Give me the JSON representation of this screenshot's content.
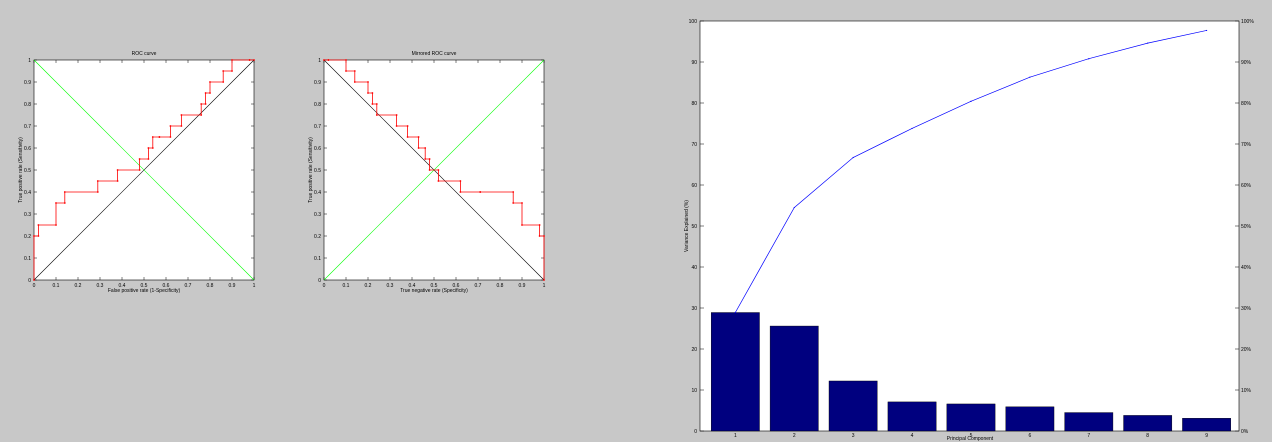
{
  "chart_data": [
    {
      "type": "line",
      "title": "ROC curve",
      "xlabel": "False positive rate (1-Specificity)",
      "ylabel": "True positive rate (Sensitivity)",
      "xlim": [
        0,
        1
      ],
      "ylim": [
        0,
        1
      ],
      "x_ticks": [
        "0",
        "0.1",
        "0.2",
        "0.3",
        "0.4",
        "0.5",
        "0.6",
        "0.7",
        "0.8",
        "0.9",
        "1"
      ],
      "y_ticks": [
        "0",
        "0.1",
        "0.2",
        "0.3",
        "0.4",
        "0.5",
        "0.6",
        "0.7",
        "0.8",
        "0.9",
        "1"
      ],
      "colors": {
        "roc": "#ff0000",
        "random": "#000000",
        "anti": "#00ff00"
      },
      "series": [
        {
          "x": [
            0,
            0,
            0.02,
            0.02,
            0.1,
            0.1,
            0.14,
            0.14,
            0.29,
            0.29,
            0.38,
            0.38,
            0.48,
            0.48,
            0.52,
            0.52,
            0.54,
            0.54,
            0.57,
            0.57,
            0.62,
            0.62,
            0.67,
            0.67,
            0.76,
            0.76,
            0.78,
            0.78,
            0.8,
            0.8,
            0.86,
            0.86,
            0.9,
            0.9,
            0.98,
            0.98,
            1
          ],
          "y": [
            0,
            0.2,
            0.2,
            0.25,
            0.25,
            0.35,
            0.35,
            0.4,
            0.4,
            0.45,
            0.45,
            0.5,
            0.5,
            0.55,
            0.55,
            0.6,
            0.6,
            0.65,
            0.65,
            0.65,
            0.65,
            0.7,
            0.7,
            0.75,
            0.75,
            0.8,
            0.8,
            0.85,
            0.85,
            0.9,
            0.9,
            0.95,
            0.95,
            1,
            1,
            1,
            1
          ]
        }
      ]
    },
    {
      "type": "line",
      "title": "Mirrored ROC curve",
      "xlabel": "True negative rate (Specificity)",
      "ylabel": "True positive rate (Sensitivity)",
      "xlim": [
        0,
        1
      ],
      "ylim": [
        0,
        1
      ],
      "x_ticks": [
        "0",
        "0.1",
        "0.2",
        "0.3",
        "0.4",
        "0.5",
        "0.6",
        "0.7",
        "0.8",
        "0.9",
        "1"
      ],
      "y_ticks": [
        "0",
        "0.1",
        "0.2",
        "0.3",
        "0.4",
        "0.5",
        "0.6",
        "0.7",
        "0.8",
        "0.9",
        "1"
      ],
      "colors": {
        "roc": "#ff0000",
        "diag": "#000000",
        "anti": "#00ff00"
      },
      "series": [
        {
          "x": [
            0,
            0.02,
            0.02,
            0.1,
            0.1,
            0.14,
            0.14,
            0.2,
            0.2,
            0.22,
            0.22,
            0.24,
            0.24,
            0.33,
            0.33,
            0.38,
            0.38,
            0.43,
            0.43,
            0.46,
            0.46,
            0.48,
            0.48,
            0.52,
            0.52,
            0.62,
            0.62,
            0.71,
            0.71,
            0.86,
            0.86,
            0.9,
            0.9,
            0.98,
            0.98,
            1,
            1
          ],
          "y": [
            1,
            1,
            1,
            1,
            0.95,
            0.95,
            0.9,
            0.9,
            0.85,
            0.85,
            0.8,
            0.8,
            0.75,
            0.75,
            0.7,
            0.7,
            0.65,
            0.65,
            0.6,
            0.6,
            0.55,
            0.55,
            0.5,
            0.5,
            0.45,
            0.45,
            0.4,
            0.4,
            0.4,
            0.4,
            0.35,
            0.35,
            0.25,
            0.25,
            0.2,
            0.2,
            0
          ]
        }
      ]
    },
    {
      "type": "bar",
      "title": "",
      "xlabel": "Principal Component",
      "ylabel": "Variance Explained (%)",
      "categories": [
        "1",
        "2",
        "3",
        "4",
        "5",
        "6",
        "7",
        "8",
        "9"
      ],
      "values": [
        28.9,
        25.6,
        12.2,
        7.1,
        6.6,
        5.9,
        4.5,
        3.8,
        3.1
      ],
      "cumulative": [
        28.9,
        54.5,
        66.7,
        73.8,
        80.4,
        86.3,
        90.8,
        94.6,
        97.7
      ],
      "ylim": [
        0,
        100
      ],
      "y_ticks": [
        "0",
        "10",
        "20",
        "30",
        "40",
        "50",
        "60",
        "70",
        "80",
        "90",
        "100"
      ],
      "y2_ticks": [
        "0%",
        "10%",
        "20%",
        "30%",
        "40%",
        "50%",
        "60%",
        "70%",
        "80%",
        "90%",
        "100%"
      ],
      "colors": {
        "bar": "#00007f",
        "line": "#0000ff"
      }
    }
  ]
}
